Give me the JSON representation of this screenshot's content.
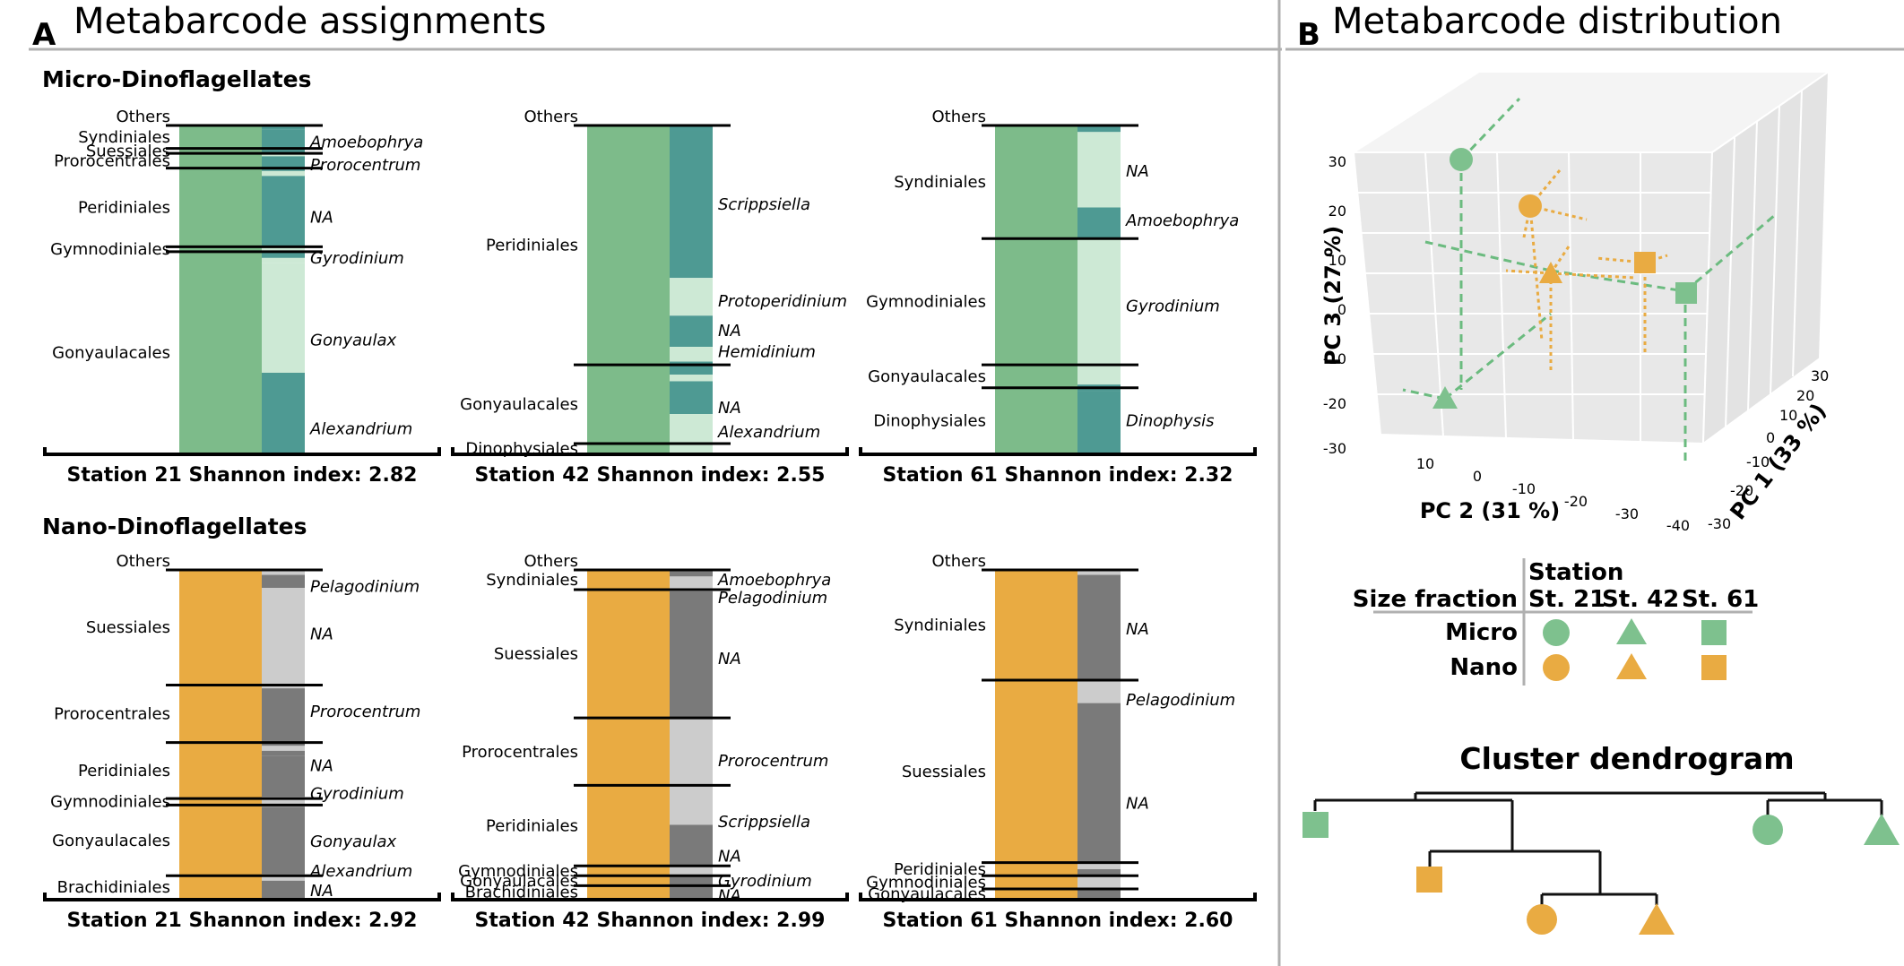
{
  "panel_a": {
    "letter": "A",
    "title": "Metabarcode assignments",
    "groups": [
      {
        "name": "Micro-Dinoflagellates",
        "fraction": "micro",
        "stations": [
          {
            "label": "Station 21 Shannon index: 2.82",
            "orders": [
              {
                "name": "Others",
                "frac": 0.0
              },
              {
                "name": "Syndiniales",
                "frac": 0.07
              },
              {
                "name": "Suessiales",
                "frac": 0.015
              },
              {
                "name": "Prorocentrales",
                "frac": 0.045
              },
              {
                "name": "Peridiniales",
                "frac": 0.24
              },
              {
                "name": "Gymnodiniales",
                "frac": 0.015
              },
              {
                "name": "Gonyaulacales",
                "frac": 0.615
              }
            ],
            "genus_bar": [
              {
                "f": 0.012,
                "c": "dark"
              },
              {
                "f": 0.07,
                "c": "dark"
              },
              {
                "f": 0.012,
                "c": "light"
              },
              {
                "f": 0.045,
                "c": "dark"
              },
              {
                "f": 0.015,
                "c": "light"
              },
              {
                "f": 0.215,
                "c": "dark"
              },
              {
                "f": 0.015,
                "c": "light"
              },
              {
                "f": 0.02,
                "c": "dark"
              },
              {
                "f": 0.015,
                "c": "light"
              },
              {
                "f": 0.335,
                "c": "light"
              },
              {
                "f": 0.246,
                "c": "dark"
              }
            ],
            "genera": [
              {
                "name": "Amoebophrya",
                "pos": 0.05
              },
              {
                "name": "Prorocentrum",
                "pos": 0.12
              },
              {
                "name": "NA",
                "pos": 0.28
              },
              {
                "name": "Gyrodinium",
                "pos": 0.405
              },
              {
                "name": "Gonyaulax",
                "pos": 0.655
              },
              {
                "name": "Alexandrium",
                "pos": 0.925
              }
            ]
          },
          {
            "label": "Station 42 Shannon index: 2.55",
            "orders": [
              {
                "name": "Others",
                "frac": 0.0
              },
              {
                "name": "Peridiniales",
                "frac": 0.73
              },
              {
                "name": "Gonyaulacales",
                "frac": 0.24
              },
              {
                "name": "Dinophysiales",
                "frac": 0.03
              }
            ],
            "genus_bar": [
              {
                "f": 0.015,
                "c": "dark"
              },
              {
                "f": 0.45,
                "c": "dark"
              },
              {
                "f": 0.115,
                "c": "light"
              },
              {
                "f": 0.095,
                "c": "dark"
              },
              {
                "f": 0.045,
                "c": "light"
              },
              {
                "f": 0.04,
                "c": "dark"
              },
              {
                "f": 0.02,
                "c": "light"
              },
              {
                "f": 0.1,
                "c": "dark"
              },
              {
                "f": 0.12,
                "c": "light"
              }
            ],
            "genera": [
              {
                "name": "Scrippsiella",
                "pos": 0.24
              },
              {
                "name": "Protoperidinium",
                "pos": 0.535
              },
              {
                "name": "NA",
                "pos": 0.625
              },
              {
                "name": "Hemidinium",
                "pos": 0.69
              },
              {
                "name": "NA",
                "pos": 0.86
              },
              {
                "name": "Alexandrium",
                "pos": 0.935
              }
            ]
          },
          {
            "label": "Station 61 Shannon index: 2.32",
            "orders": [
              {
                "name": "Others",
                "frac": 0.0
              },
              {
                "name": "Syndiniales",
                "frac": 0.345
              },
              {
                "name": "Gymnodiniales",
                "frac": 0.385
              },
              {
                "name": "Gonyaulacales",
                "frac": 0.07
              },
              {
                "name": "Dinophysiales",
                "frac": 0.2
              }
            ],
            "genus_bar": [
              {
                "f": 0.02,
                "c": "dark"
              },
              {
                "f": 0.23,
                "c": "light"
              },
              {
                "f": 0.095,
                "c": "dark"
              },
              {
                "f": 0.445,
                "c": "light"
              },
              {
                "f": 0.02,
                "c": "dark"
              },
              {
                "f": 0.19,
                "c": "dark"
              }
            ],
            "genera": [
              {
                "name": "NA",
                "pos": 0.14
              },
              {
                "name": "Amoebophrya",
                "pos": 0.29
              },
              {
                "name": "Gyrodinium",
                "pos": 0.55
              },
              {
                "name": "Dinophysis",
                "pos": 0.9
              }
            ]
          }
        ]
      },
      {
        "name": "Nano-Dinoflagellates",
        "fraction": "nano",
        "stations": [
          {
            "label": "Station 21 Shannon index: 2.92",
            "orders": [
              {
                "name": "Others",
                "frac": 0.0
              },
              {
                "name": "Suessiales",
                "frac": 0.35
              },
              {
                "name": "Prorocentrales",
                "frac": 0.175
              },
              {
                "name": "Peridiniales",
                "frac": 0.17
              },
              {
                "name": "Gymnodiniales",
                "frac": 0.02
              },
              {
                "name": "Gonyaulacales",
                "frac": 0.215
              },
              {
                "name": "Brachidiniales",
                "frac": 0.07
              }
            ],
            "genus_bar": [
              {
                "f": 0.015,
                "c": "light"
              },
              {
                "f": 0.04,
                "c": "dark"
              },
              {
                "f": 0.305,
                "c": "light"
              },
              {
                "f": 0.175,
                "c": "dark"
              },
              {
                "f": 0.015,
                "c": "light"
              },
              {
                "f": 0.015,
                "c": "dark"
              },
              {
                "f": 0.125,
                "c": "dark"
              },
              {
                "f": 0.03,
                "c": "light"
              },
              {
                "f": 0.205,
                "c": "dark"
              },
              {
                "f": 0.02,
                "c": "light"
              },
              {
                "f": 0.055,
                "c": "dark"
              }
            ],
            "genera": [
              {
                "name": "Pelagodinium",
                "pos": 0.05
              },
              {
                "name": "NA",
                "pos": 0.195
              },
              {
                "name": "Prorocentrum",
                "pos": 0.43
              },
              {
                "name": "NA",
                "pos": 0.595
              },
              {
                "name": "Gyrodinium",
                "pos": 0.68
              },
              {
                "name": "Gonyaulax",
                "pos": 0.825
              },
              {
                "name": "Alexandrium",
                "pos": 0.915
              },
              {
                "name": "NA",
                "pos": 0.975
              }
            ]
          },
          {
            "label": "Station 42 Shannon index: 2.99",
            "orders": [
              {
                "name": "Others",
                "frac": 0.0
              },
              {
                "name": "Syndiniales",
                "frac": 0.06
              },
              {
                "name": "Suessiales",
                "frac": 0.39
              },
              {
                "name": "Prorocentrales",
                "frac": 0.205
              },
              {
                "name": "Peridiniales",
                "frac": 0.245
              },
              {
                "name": "Gymnodiniales",
                "frac": 0.03
              },
              {
                "name": "Gonyaulacales",
                "frac": 0.03
              },
              {
                "name": "Brachidiniales",
                "frac": 0.04
              }
            ],
            "genus_bar": [
              {
                "f": 0.02,
                "c": "dark"
              },
              {
                "f": 0.045,
                "c": "light"
              },
              {
                "f": 0.385,
                "c": "dark"
              },
              {
                "f": 0.205,
                "c": "light"
              },
              {
                "f": 0.12,
                "c": "light"
              },
              {
                "f": 0.125,
                "c": "dark"
              },
              {
                "f": 0.03,
                "c": "light"
              },
              {
                "f": 0.03,
                "c": "dark"
              },
              {
                "f": 0.04,
                "c": "dark"
              }
            ],
            "genera": [
              {
                "name": "Amoebophrya",
                "pos": 0.03
              },
              {
                "name": "Pelagodinium",
                "pos": 0.085
              },
              {
                "name": "NA",
                "pos": 0.27
              },
              {
                "name": "Prorocentrum",
                "pos": 0.58
              },
              {
                "name": "Scrippsiella",
                "pos": 0.765
              },
              {
                "name": "NA",
                "pos": 0.87
              },
              {
                "name": "Gyrodinium",
                "pos": 0.945
              },
              {
                "name": "NA",
                "pos": 0.99
              }
            ]
          },
          {
            "label": "Station 61 Shannon index: 2.60",
            "orders": [
              {
                "name": "Others",
                "frac": 0.0
              },
              {
                "name": "Syndiniales",
                "frac": 0.335
              },
              {
                "name": "Suessiales",
                "frac": 0.555
              },
              {
                "name": "Peridiniales",
                "frac": 0.04
              },
              {
                "name": "Gymnodiniales",
                "frac": 0.04
              },
              {
                "name": "Gonyaulacales",
                "frac": 0.03
              }
            ],
            "genus_bar": [
              {
                "f": 0.015,
                "c": "light"
              },
              {
                "f": 0.32,
                "c": "dark"
              },
              {
                "f": 0.07,
                "c": "light"
              },
              {
                "f": 0.485,
                "c": "dark"
              },
              {
                "f": 0.02,
                "c": "light"
              },
              {
                "f": 0.02,
                "c": "dark"
              },
              {
                "f": 0.04,
                "c": "light"
              },
              {
                "f": 0.03,
                "c": "dark"
              }
            ],
            "genera": [
              {
                "name": "NA",
                "pos": 0.18
              },
              {
                "name": "Pelagodinium",
                "pos": 0.395
              },
              {
                "name": "NA",
                "pos": 0.71
              }
            ]
          }
        ]
      }
    ]
  },
  "panel_b": {
    "letter": "B",
    "title": "Metabarcode distribution",
    "pca": {
      "pc3_label": "PC 3 (27 %)",
      "pc2_label": "PC 2 (31 %)",
      "pc1_label": "PC 1 (33 %)",
      "pc3_ticks": [
        "30",
        "20",
        "10",
        "0",
        "-10",
        "-20",
        "-30"
      ],
      "pc2_ticks": [
        "10",
        "0",
        "-10",
        "-20",
        "-30",
        "-40"
      ],
      "pc1_ticks": [
        "30",
        "20",
        "10",
        "0",
        "-10",
        "-20",
        "-30"
      ],
      "points": [
        {
          "fraction": "Micro",
          "station": "St. 21"
        },
        {
          "fraction": "Micro",
          "station": "St. 42"
        },
        {
          "fraction": "Micro",
          "station": "St. 61"
        },
        {
          "fraction": "Nano",
          "station": "St. 21"
        },
        {
          "fraction": "Nano",
          "station": "St. 42"
        },
        {
          "fraction": "Nano",
          "station": "St. 61"
        }
      ]
    },
    "legend": {
      "station_header": "Station",
      "size_fraction_header": "Size fraction",
      "stations": [
        "St. 21",
        "St. 42",
        "St. 61"
      ],
      "fractions": [
        "Micro",
        "Nano"
      ]
    },
    "dendrogram": {
      "title": "Cluster dendrogram",
      "leaves": [
        {
          "fraction": "Micro",
          "station": "St. 61"
        },
        {
          "fraction": "Nano",
          "station": "St. 61"
        },
        {
          "fraction": "Nano",
          "station": "St. 21"
        },
        {
          "fraction": "Nano",
          "station": "St. 42"
        },
        {
          "fraction": "Micro",
          "station": "St. 21"
        },
        {
          "fraction": "Micro",
          "station": "St. 42"
        }
      ]
    }
  },
  "colors": {
    "micro_main": "#7dbb8a",
    "micro_dark": "#4e9a93",
    "micro_light": "#cde9d5",
    "nano_main": "#e9ab42",
    "nano_dark": "#7a7a7a",
    "nano_light": "#cccccc",
    "marker_green": "#7ec18e",
    "marker_orange": "#e9ab42",
    "divider": "#b0b0b0",
    "pca_panel": "#ededed",
    "pca_grid": "#ffffff"
  }
}
